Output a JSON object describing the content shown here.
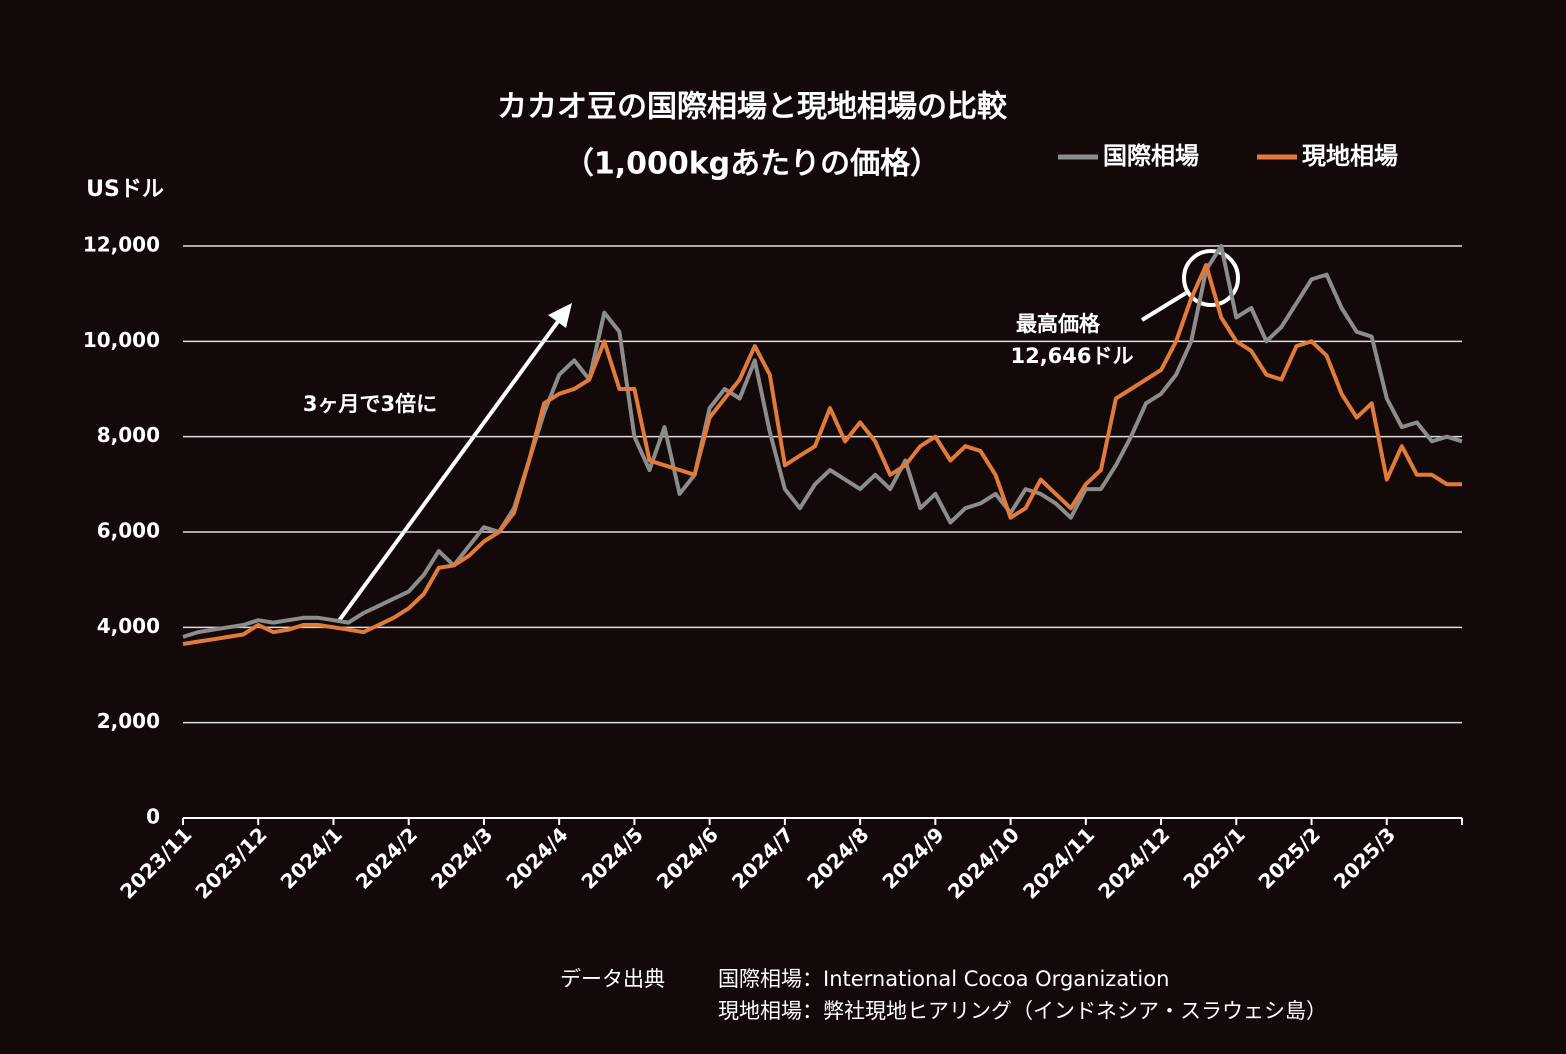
{
  "chart_data": {
    "type": "line",
    "title": "カカオ豆の国際相場と現地相場の比較",
    "subtitle": "（1,000kgあたりの価格）",
    "y_label": "USドル",
    "categories": [
      "2023/11",
      null,
      null,
      null,
      null,
      "2023/12",
      null,
      null,
      null,
      null,
      "2024/1",
      null,
      null,
      null,
      null,
      "2024/2",
      null,
      null,
      null,
      null,
      "2024/3",
      null,
      null,
      null,
      null,
      "2024/4",
      null,
      null,
      null,
      null,
      "2024/5",
      null,
      null,
      null,
      null,
      "2024/6",
      null,
      null,
      null,
      null,
      "2024/7",
      null,
      null,
      null,
      null,
      "2024/8",
      null,
      null,
      null,
      null,
      "2024/9",
      null,
      null,
      null,
      null,
      "2024/10",
      null,
      null,
      null,
      null,
      "2024/11",
      null,
      null,
      null,
      null,
      "2024/12",
      null,
      null,
      null,
      null,
      "2025/1",
      null,
      null,
      null,
      null,
      "2025/2",
      null,
      null,
      null,
      null,
      "2025/3",
      null,
      null,
      null,
      null,
      null
    ],
    "series": [
      {
        "name": "国際相場",
        "color": "#8c8c8c",
        "values": [
          3800,
          3900,
          3950,
          4000,
          4050,
          4150,
          4100,
          4150,
          4200,
          4200,
          4150,
          4100,
          4300,
          4450,
          4600,
          4750,
          5100,
          5600,
          5300,
          5700,
          6100,
          6000,
          6500,
          7500,
          8500,
          9300,
          9600,
          9200,
          10600,
          10200,
          8000,
          7300,
          8200,
          6800,
          7200,
          8600,
          9000,
          8800,
          9600,
          8100,
          6900,
          6500,
          7000,
          7300,
          7100,
          6900,
          7200,
          6900,
          7500,
          6500,
          6800,
          6200,
          6500,
          6600,
          6800,
          6400,
          6900,
          6800,
          6600,
          6300,
          6900,
          6900,
          7400,
          8000,
          8700,
          8900,
          9300,
          10000,
          11500,
          12000,
          10500,
          10700,
          10000,
          10300,
          10800,
          11300,
          11400,
          10700,
          10200,
          10100,
          8800,
          8200,
          8300,
          7900,
          8000,
          7900
        ]
      },
      {
        "name": "現地相場",
        "color": "#e07b3c",
        "values": [
          3650,
          3700,
          3750,
          3800,
          3850,
          4050,
          3900,
          3950,
          4050,
          4050,
          4000,
          3950,
          3900,
          4050,
          4200,
          4400,
          4700,
          5250,
          5300,
          5500,
          5800,
          6000,
          6400,
          7500,
          8700,
          8900,
          9000,
          9200,
          10000,
          9000,
          9000,
          7500,
          7400,
          7300,
          7200,
          8400,
          8800,
          9200,
          9900,
          9300,
          7400,
          7600,
          7800,
          8600,
          7900,
          8300,
          7900,
          7200,
          7400,
          7800,
          8000,
          7500,
          7800,
          7700,
          7200,
          6300,
          6500,
          7100,
          6800,
          6500,
          7000,
          7300,
          8800,
          9000,
          9200,
          9400,
          10000,
          10900,
          11600,
          10500,
          10000,
          9800,
          9300,
          9200,
          9900,
          10000,
          9700,
          8900,
          8400,
          8700,
          7100,
          7800,
          7200,
          7200,
          7000,
          7000
        ]
      }
    ],
    "ylim": [
      0,
      12000
    ],
    "yticks": [
      0,
      {
        "value": 2000,
        "label": "2,000"
      },
      {
        "value": 4000,
        "label": "4,000"
      },
      {
        "value": 6000,
        "label": "6,000"
      },
      {
        "value": 8000,
        "label": "8,000"
      },
      {
        "value": 10000,
        "label": "10,000"
      },
      {
        "value": 12000,
        "label": "12,000"
      }
    ],
    "grid": true,
    "legend": "top-right",
    "annotations": [
      "3ヶ月で3倍に",
      "最高価格",
      "12,646ドル"
    ],
    "source": {
      "label": "データ出典",
      "lines": [
        "国際相場：International Cocoa Organization",
        "現地相場：弊社現地ヒアリング（インドネシア・スラウェシ島）"
      ]
    }
  }
}
